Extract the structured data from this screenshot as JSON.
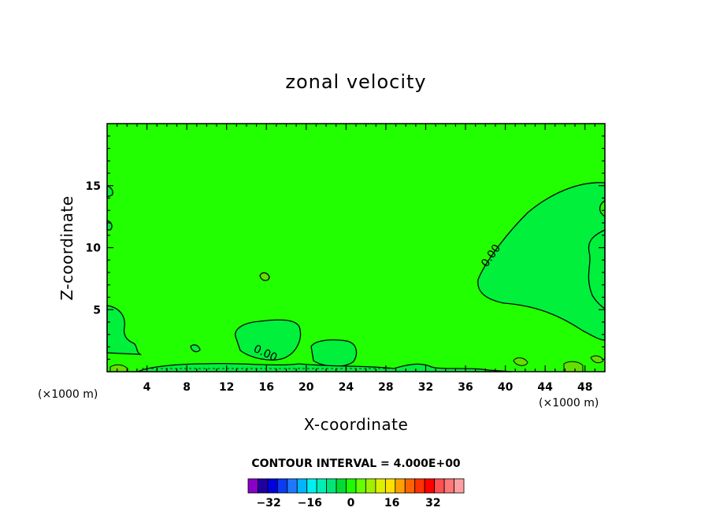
{
  "chart_data": {
    "type": "contour",
    "title": "zonal velocity",
    "xlabel": "X-coordinate",
    "ylabel": "Z-coordinate",
    "x_unit_note": "(×1000 m)",
    "xlim": [
      0,
      50
    ],
    "ylim": [
      0,
      20
    ],
    "x_ticks": [
      4,
      8,
      12,
      16,
      20,
      24,
      28,
      32,
      36,
      40,
      44,
      48
    ],
    "x_tick_labels": [
      "4",
      "8",
      "12",
      "16",
      "20",
      "24",
      "28",
      "32",
      "36",
      "40",
      "44",
      "48"
    ],
    "y_ticks": [
      5,
      10,
      15
    ],
    "y_tick_labels": [
      "5",
      "10",
      "15"
    ],
    "contour_interval_text": "CONTOUR INTERVAL = 4.000E+00",
    "contour_label": "0.00",
    "colorbar": {
      "colors": [
        "#8a00c8",
        "#1e00a0",
        "#0000dc",
        "#0a3cf0",
        "#1e78ff",
        "#00b4ff",
        "#00f0f0",
        "#00f0b4",
        "#00e678",
        "#00dc32",
        "#1efa00",
        "#64ff00",
        "#a0f000",
        "#dcf000",
        "#ffe100",
        "#ffa000",
        "#ff6400",
        "#ff3200",
        "#ff0000",
        "#ff5050",
        "#ff7878",
        "#ffa0a0"
      ],
      "labels": [
        "−32",
        "−16",
        "0",
        "16",
        "32"
      ],
      "label_values": [
        -32,
        -16,
        0,
        16,
        32
      ],
      "vmin": -40,
      "vmax": 44
    },
    "background_color": "#22ff00",
    "negative_region_color": "#00f03c",
    "positive_region_color": "#64e000"
  }
}
